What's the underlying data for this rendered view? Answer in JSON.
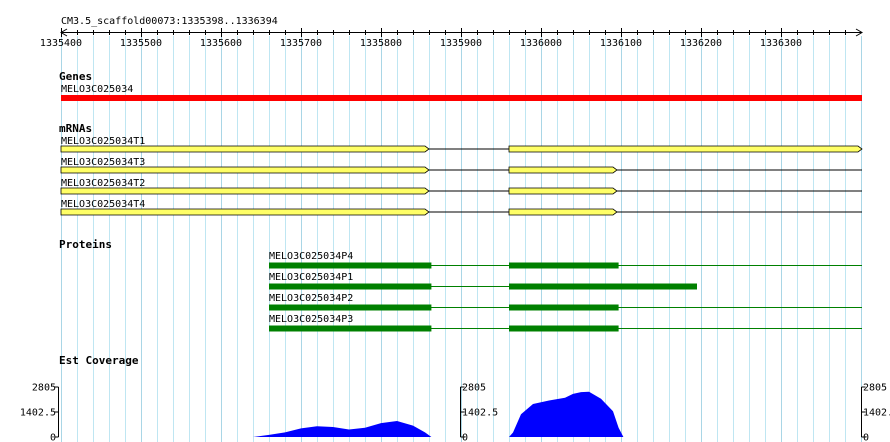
{
  "region": "CM3.5_scaffold00073:1335398..1336394",
  "ruler": {
    "start": 1335400,
    "end": 1336394,
    "ticks": [
      "1335400",
      "1335500",
      "1335600",
      "1335700",
      "1335800",
      "1335900",
      "1336000",
      "1336100",
      "1336200",
      "1336300"
    ]
  },
  "colors": {
    "gene": "#ff0000",
    "mrna": "#ffff66",
    "protein": "#008000",
    "coverage": "#0000ff",
    "grid": "#bfe6f2"
  },
  "genes": {
    "title": "Genes",
    "items": [
      {
        "name": "MELO3C025034",
        "start": 1335400,
        "end": 1336394
      }
    ]
  },
  "mrnas": {
    "title": "mRNAs",
    "items": [
      {
        "name": "MELO3C025034T1",
        "start": 1335400,
        "end": 1336394,
        "exons": [
          [
            1335400,
            1335860
          ],
          [
            1335960,
            1336394
          ]
        ],
        "strand": "+"
      },
      {
        "name": "MELO3C025034T3",
        "start": 1335400,
        "end": 1336394,
        "exons": [
          [
            1335400,
            1335860
          ],
          [
            1335960,
            1336095
          ]
        ],
        "strand": "+"
      },
      {
        "name": "MELO3C025034T2",
        "start": 1335400,
        "end": 1336394,
        "exons": [
          [
            1335400,
            1335860
          ],
          [
            1335960,
            1336095
          ]
        ],
        "strand": "+"
      },
      {
        "name": "MELO3C025034T4",
        "start": 1335400,
        "end": 1336394,
        "exons": [
          [
            1335400,
            1335860
          ],
          [
            1335960,
            1336095
          ]
        ],
        "strand": "+"
      }
    ]
  },
  "proteins": {
    "title": "Proteins",
    "items": [
      {
        "name": "MELO3C025034P4",
        "start": 1335660,
        "end": 1336394,
        "blocks": [
          [
            1335660,
            1335863
          ],
          [
            1335960,
            1336097
          ]
        ]
      },
      {
        "name": "MELO3C025034P1",
        "start": 1335660,
        "end": 1336195,
        "blocks": [
          [
            1335660,
            1335863
          ],
          [
            1335960,
            1336195
          ]
        ]
      },
      {
        "name": "MELO3C025034P2",
        "start": 1335660,
        "end": 1336394,
        "blocks": [
          [
            1335660,
            1335863
          ],
          [
            1335960,
            1336097
          ]
        ]
      },
      {
        "name": "MELO3C025034P3",
        "start": 1335660,
        "end": 1336394,
        "blocks": [
          [
            1335660,
            1335863
          ],
          [
            1335960,
            1336097
          ]
        ]
      }
    ]
  },
  "coverage": {
    "title": "Est Coverage",
    "y_max": "2805",
    "y_mid": "1402.5",
    "y_min": "0",
    "max": 2805,
    "points": [
      [
        1335620,
        0
      ],
      [
        1335640,
        0
      ],
      [
        1335660,
        120
      ],
      [
        1335680,
        260
      ],
      [
        1335700,
        480
      ],
      [
        1335720,
        600
      ],
      [
        1335740,
        560
      ],
      [
        1335760,
        420
      ],
      [
        1335780,
        520
      ],
      [
        1335800,
        780
      ],
      [
        1335820,
        900
      ],
      [
        1335840,
        640
      ],
      [
        1335855,
        260
      ],
      [
        1335863,
        0
      ],
      [
        1335960,
        0
      ],
      [
        1335965,
        250
      ],
      [
        1335975,
        1280
      ],
      [
        1335990,
        1850
      ],
      [
        1336010,
        2050
      ],
      [
        1336030,
        2200
      ],
      [
        1336040,
        2420
      ],
      [
        1336050,
        2520
      ],
      [
        1336060,
        2540
      ],
      [
        1336075,
        2150
      ],
      [
        1336090,
        1450
      ],
      [
        1336097,
        520
      ],
      [
        1336103,
        0
      ]
    ]
  }
}
